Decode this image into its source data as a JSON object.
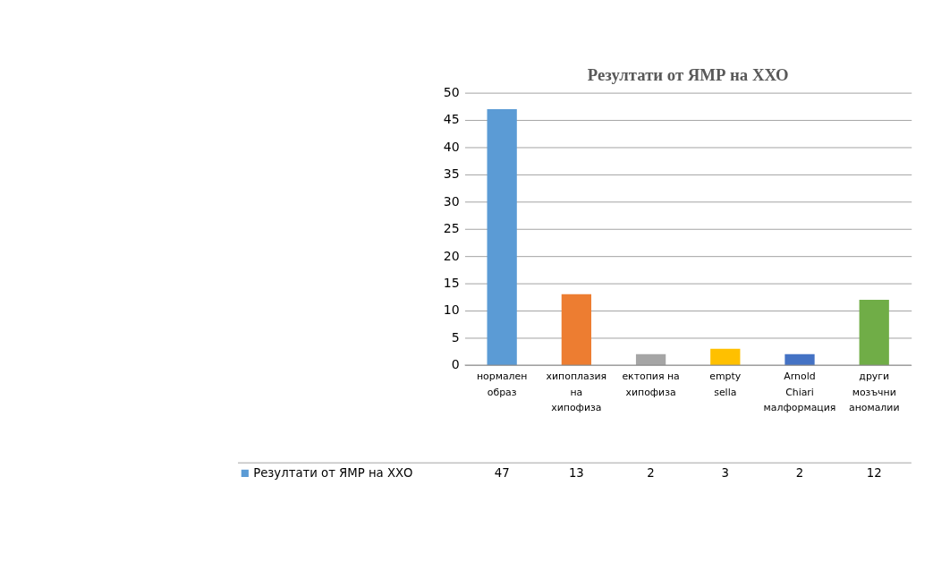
{
  "chart_data": {
    "type": "bar",
    "title": "Резултати от ЯМР на ХХО",
    "categories": [
      "нормален образ",
      "хипоплазия на хипофиза",
      "ектопия на хипофиза",
      "empty sella",
      "Arnold Chiari малформация",
      "други мозъчни аномалии"
    ],
    "series": [
      {
        "name": "Резултати от ЯМР на ХХО",
        "values": [
          47,
          13,
          2,
          3,
          2,
          12
        ],
        "colors": [
          "#5b9bd5",
          "#ed7d31",
          "#a5a5a5",
          "#ffc000",
          "#4472c4",
          "#70ad47"
        ]
      }
    ],
    "ylim": [
      0,
      50
    ],
    "yticks": [
      0,
      5,
      10,
      15,
      20,
      25,
      30,
      35,
      40,
      45,
      50
    ],
    "grid": "y",
    "data_labels": true,
    "legend": "bottom"
  }
}
